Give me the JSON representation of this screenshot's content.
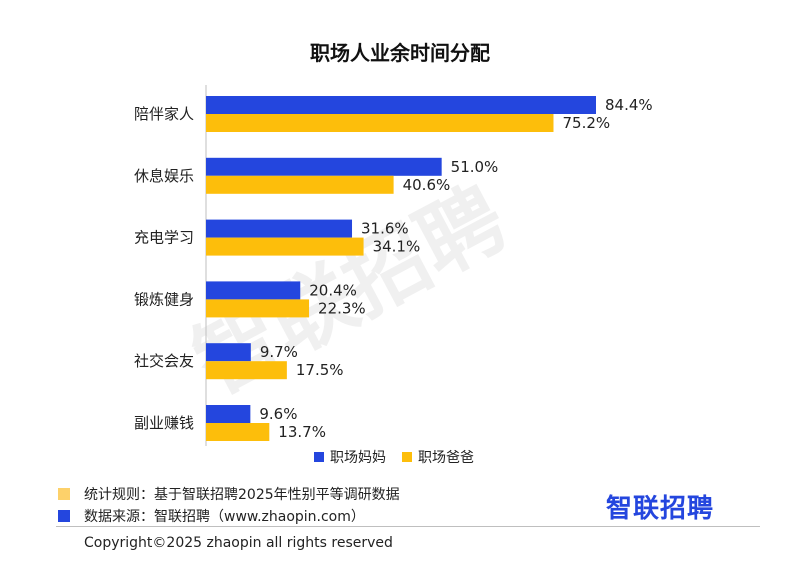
{
  "chart_data": {
    "type": "bar",
    "orientation": "horizontal",
    "title": "职场人业余时间分配",
    "categories": [
      "陪伴家人",
      "休息娱乐",
      "充电学习",
      "锻炼健身",
      "社交会友",
      "副业赚钱"
    ],
    "series": [
      {
        "name": "职场妈妈",
        "color": "#2446de",
        "values": [
          84.4,
          51.0,
          31.6,
          20.4,
          9.7,
          9.6
        ],
        "labels": [
          "84.4%",
          "51.0%",
          "31.6%",
          "20.4%",
          "9.7%",
          "9.6%"
        ]
      },
      {
        "name": "职场爸爸",
        "color": "#fdbe0b",
        "values": [
          75.2,
          40.6,
          34.1,
          22.3,
          17.5,
          13.7
        ],
        "labels": [
          "75.2%",
          "40.6%",
          "34.1%",
          "22.3%",
          "17.5%",
          "13.7%"
        ]
      }
    ],
    "xlim": [
      0,
      100
    ],
    "grid": false,
    "legend_position": "bottom-right",
    "watermark": "智联招聘"
  },
  "notes": [
    {
      "text": "统计规则：基于智联招聘2025年性别平等调研数据",
      "color": "#fdd16a"
    },
    {
      "text": "数据来源：智联招聘（www.zhaopin.com）",
      "color": "#2446de"
    }
  ],
  "brand": "智联招聘",
  "copyright": "Copyright©2025 zhaopin all rights reserved"
}
